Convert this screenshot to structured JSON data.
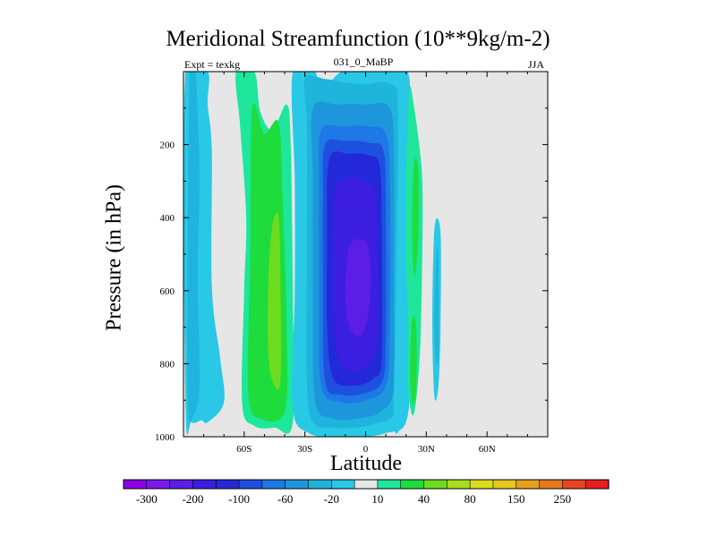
{
  "title": "Meridional Streamfunction (10**9kg/m-2)",
  "experiment_label": "Expt = texkg",
  "run_label": "031_0_MaBP",
  "season_label": "JJA",
  "chart_data": {
    "type": "contour",
    "title": "Meridional Streamfunction (10**9kg/m-2)",
    "xlabel": "Latitude",
    "ylabel": "Pressure (in hPa)",
    "xlim": [
      -90,
      90
    ],
    "ylim": [
      1000,
      0
    ],
    "x_ticks": [
      {
        "value": -60,
        "label": "60S"
      },
      {
        "value": -30,
        "label": "30S"
      },
      {
        "value": 0,
        "label": "0"
      },
      {
        "value": 30,
        "label": "30N"
      },
      {
        "value": 60,
        "label": "60N"
      }
    ],
    "y_ticks": [
      {
        "value": 200,
        "label": "200"
      },
      {
        "value": 400,
        "label": "400"
      },
      {
        "value": 600,
        "label": "600"
      },
      {
        "value": 800,
        "label": "800"
      },
      {
        "value": 1000,
        "label": "1000"
      }
    ],
    "colorbar": {
      "colors": [
        "#8c00e6",
        "#7a1be8",
        "#5c1ee6",
        "#3c1ee0",
        "#2328d8",
        "#1e50e0",
        "#1e78e6",
        "#1e96dc",
        "#1eb4dc",
        "#28c8e6",
        "#e6e6e6",
        "#1ee69b",
        "#1edc3c",
        "#6edc1e",
        "#a8dc1e",
        "#dcdc1e",
        "#e6c81e",
        "#e6a01e",
        "#e6781e",
        "#e6461e",
        "#e61e1e"
      ],
      "labels": [
        "-300",
        "-200",
        "-100",
        "-60",
        "-20",
        "10",
        "40",
        "80",
        "150",
        "250"
      ],
      "label_boundaries": [
        1,
        3,
        5,
        7,
        9,
        11,
        13,
        15,
        17,
        19
      ]
    },
    "regions": [
      {
        "name": "sh-cyan-lobe",
        "level": "-20 to -10",
        "color": "#28c8e6",
        "points": [
          [
            -89,
            910
          ],
          [
            -86,
            960
          ],
          [
            -81,
            955
          ],
          [
            -78,
            960
          ],
          [
            -70,
            905
          ],
          [
            -72,
            780
          ],
          [
            -76,
            590
          ],
          [
            -76,
            220
          ],
          [
            -78,
            90
          ],
          [
            -78,
            0
          ],
          [
            -89,
            0
          ]
        ]
      },
      {
        "name": "sh-light-blue-lobe",
        "level": "-60 to -20",
        "color": "#1eb4dc",
        "points": [
          [
            -87,
            0
          ],
          [
            -84,
            0
          ],
          [
            -83,
            120
          ],
          [
            -82,
            300
          ],
          [
            -83,
            560
          ],
          [
            -82,
            850
          ],
          [
            -85,
            940
          ],
          [
            -88,
            860
          ]
        ]
      },
      {
        "name": "sh-teal-ring",
        "level": "10 to 40",
        "color": "#1ee69b",
        "points": [
          [
            -64,
            0
          ],
          [
            -55,
            0
          ],
          [
            -52,
            110
          ],
          [
            -46,
            160
          ],
          [
            -39,
            90
          ],
          [
            -37,
            200
          ],
          [
            -36,
            600
          ],
          [
            -36,
            960
          ],
          [
            -45,
            975
          ],
          [
            -55,
            970
          ],
          [
            -61,
            910
          ],
          [
            -60,
            600
          ],
          [
            -59,
            400
          ],
          [
            -62,
            150
          ]
        ]
      },
      {
        "name": "sh-green-cell",
        "level": "40 to 80",
        "color": "#1edc3c",
        "points": [
          [
            -56,
            100
          ],
          [
            -50,
            170
          ],
          [
            -43,
            140
          ],
          [
            -41,
            350
          ],
          [
            -39,
            700
          ],
          [
            -40,
            930
          ],
          [
            -52,
            950
          ],
          [
            -58,
            880
          ],
          [
            -57,
            500
          ]
        ]
      },
      {
        "name": "sh-yellowgreen-core",
        "level": "80 to 150",
        "color": "#6edc1e",
        "points": [
          [
            -46,
            420
          ],
          [
            -43,
            400
          ],
          [
            -42,
            600
          ],
          [
            -42,
            840
          ],
          [
            -45,
            860
          ],
          [
            -48,
            780
          ],
          [
            -48,
            560
          ]
        ]
      },
      {
        "name": "eq-outer-cyan",
        "level": "-20 to -10",
        "color": "#28c8e6",
        "points": [
          [
            -36,
            0
          ],
          [
            -25,
            0
          ],
          [
            -23,
            60
          ],
          [
            -12,
            0
          ],
          [
            0,
            0
          ],
          [
            10,
            0
          ],
          [
            20,
            0
          ],
          [
            22,
            60
          ],
          [
            21,
            250
          ],
          [
            21,
            500
          ],
          [
            22,
            800
          ],
          [
            20,
            960
          ],
          [
            10,
            990
          ],
          [
            0,
            1000
          ],
          [
            -15,
            1000
          ],
          [
            -28,
            990
          ],
          [
            -36,
            920
          ],
          [
            -35,
            600
          ],
          [
            -35,
            300
          ]
        ]
      },
      {
        "name": "eq-light-blue",
        "level": "-60 to -20",
        "color": "#1eb4dc",
        "points": [
          [
            -30,
            20
          ],
          [
            -20,
            20
          ],
          [
            -10,
            30
          ],
          [
            0,
            35
          ],
          [
            10,
            30
          ],
          [
            17,
            70
          ],
          [
            18,
            250
          ],
          [
            18,
            600
          ],
          [
            18,
            850
          ],
          [
            14,
            940
          ],
          [
            4,
            965
          ],
          [
            -6,
            975
          ],
          [
            -16,
            975
          ],
          [
            -26,
            960
          ],
          [
            -29,
            850
          ],
          [
            -29,
            500
          ],
          [
            -29,
            150
          ]
        ]
      },
      {
        "name": "eq-mid-blue-1",
        "level": "-100 to -60",
        "color": "#1e96dc",
        "points": [
          [
            -26,
            100
          ],
          [
            -14,
            90
          ],
          [
            0,
            90
          ],
          [
            12,
            100
          ],
          [
            14,
            250
          ],
          [
            14,
            600
          ],
          [
            14,
            860
          ],
          [
            8,
            930
          ],
          [
            -4,
            950
          ],
          [
            -16,
            950
          ],
          [
            -25,
            900
          ],
          [
            -26,
            600
          ],
          [
            -26,
            300
          ]
        ]
      },
      {
        "name": "eq-mid-blue-2",
        "level": "-100 to -60",
        "color": "#1e78e6",
        "points": [
          [
            -22,
            160
          ],
          [
            -12,
            150
          ],
          [
            2,
            150
          ],
          [
            10,
            170
          ],
          [
            12,
            300
          ],
          [
            12,
            700
          ],
          [
            10,
            860
          ],
          [
            0,
            900
          ],
          [
            -12,
            905
          ],
          [
            -22,
            860
          ],
          [
            -23,
            600
          ],
          [
            -23,
            300
          ]
        ]
      },
      {
        "name": "eq-blue",
        "level": "-200 to -100",
        "color": "#1e50e0",
        "points": [
          [
            -20,
            200
          ],
          [
            -10,
            190
          ],
          [
            2,
            195
          ],
          [
            9,
            220
          ],
          [
            10,
            400
          ],
          [
            10,
            750
          ],
          [
            8,
            850
          ],
          [
            0,
            880
          ],
          [
            -12,
            885
          ],
          [
            -20,
            850
          ],
          [
            -21,
            600
          ],
          [
            -21,
            350
          ]
        ]
      },
      {
        "name": "eq-deep-blue",
        "level": "-200 to -100",
        "color": "#2328d8",
        "points": [
          [
            -18,
            240
          ],
          [
            -8,
            225
          ],
          [
            2,
            230
          ],
          [
            7,
            260
          ],
          [
            8,
            450
          ],
          [
            8,
            780
          ],
          [
            4,
            840
          ],
          [
            -6,
            860
          ],
          [
            -16,
            840
          ],
          [
            -19,
            700
          ],
          [
            -19,
            450
          ]
        ]
      },
      {
        "name": "eq-indigo",
        "level": "-300 to -200",
        "color": "#3c1ee0",
        "points": [
          [
            -15,
            320
          ],
          [
            -8,
            290
          ],
          [
            0,
            300
          ],
          [
            5,
            340
          ],
          [
            6,
            500
          ],
          [
            6,
            720
          ],
          [
            2,
            800
          ],
          [
            -6,
            820
          ],
          [
            -13,
            790
          ],
          [
            -16,
            650
          ],
          [
            -16,
            450
          ]
        ]
      },
      {
        "name": "eq-violet-core",
        "level": "< -300",
        "color": "#5c1ee6",
        "points": [
          [
            -8,
            480
          ],
          [
            -2,
            460
          ],
          [
            2,
            500
          ],
          [
            2,
            640
          ],
          [
            -2,
            720
          ],
          [
            -8,
            700
          ],
          [
            -10,
            600
          ]
        ]
      },
      {
        "name": "nh-cyan-strip",
        "level": "-20 to -10",
        "color": "#28c8e6",
        "points": [
          [
            16,
            0
          ],
          [
            21,
            0
          ],
          [
            20,
            200
          ],
          [
            19,
            500
          ],
          [
            20,
            850
          ],
          [
            18,
            960
          ],
          [
            14,
            960
          ],
          [
            15,
            600
          ],
          [
            16,
            200
          ]
        ]
      },
      {
        "name": "nh-teal-strip",
        "level": "10 to 40",
        "color": "#1ee69b",
        "points": [
          [
            22,
            40
          ],
          [
            24,
            100
          ],
          [
            26,
            180
          ],
          [
            28,
            300
          ],
          [
            28,
            500
          ],
          [
            27,
            750
          ],
          [
            25,
            900
          ],
          [
            23,
            940
          ],
          [
            21,
            860
          ],
          [
            21,
            700
          ],
          [
            20,
            500
          ],
          [
            20,
            300
          ],
          [
            21,
            120
          ]
        ]
      },
      {
        "name": "nh-green-strip",
        "level": "40 to 80",
        "color": "#1edc3c",
        "points": [
          [
            24,
            250
          ],
          [
            26,
            270
          ],
          [
            26,
            460
          ],
          [
            24,
            560
          ],
          [
            23,
            420
          ]
        ]
      },
      {
        "name": "nh-green-lower",
        "level": "40 to 80",
        "color": "#1edc3c",
        "points": [
          [
            23,
            680
          ],
          [
            25,
            700
          ],
          [
            25,
            870
          ],
          [
            23,
            910
          ],
          [
            22,
            820
          ]
        ]
      },
      {
        "name": "nh-cyan-tail",
        "level": "-20 to -10",
        "color": "#28c8e6",
        "points": [
          [
            34,
            430
          ],
          [
            37,
            440
          ],
          [
            37,
            700
          ],
          [
            36,
            860
          ],
          [
            34,
            890
          ],
          [
            33,
            700
          ]
        ]
      },
      {
        "name": "nh-light-blue-tail",
        "level": "-60 to -20",
        "color": "#1eb4dc",
        "points": [
          [
            35,
            500
          ],
          [
            36,
            520
          ],
          [
            36,
            760
          ],
          [
            35,
            800
          ],
          [
            34,
            700
          ]
        ]
      }
    ]
  }
}
